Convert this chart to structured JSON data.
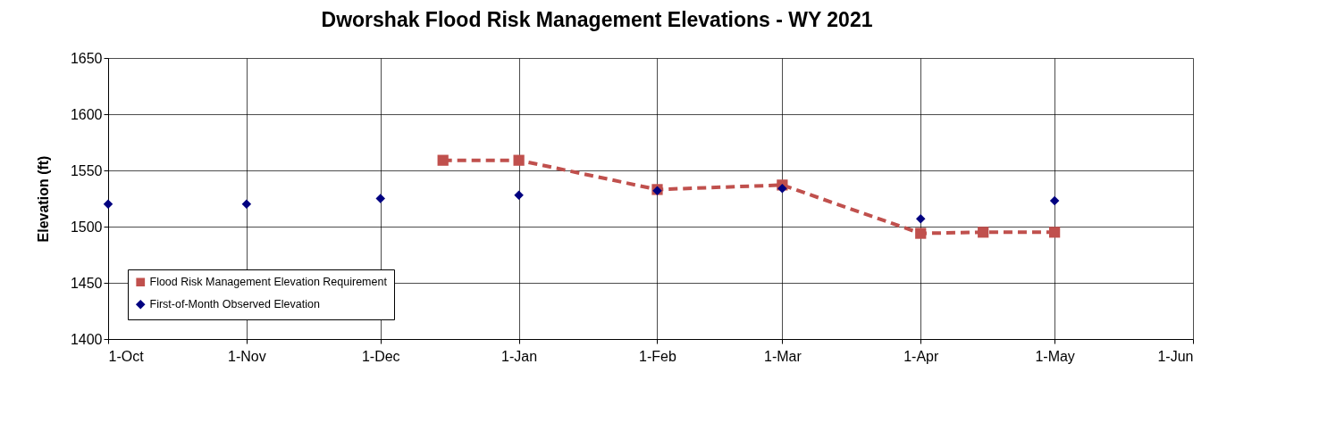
{
  "chart_data": {
    "type": "line",
    "title": "Dworshak Flood Risk Management  Elevations - WY 2021",
    "ylabel": "Elevation (ft)",
    "xlim": [
      "2020-10-01",
      "2021-06-01"
    ],
    "xticks": [
      {
        "value": "2020-10-01",
        "label": "1-Oct"
      },
      {
        "value": "2020-11-01",
        "label": "1-Nov"
      },
      {
        "value": "2020-12-01",
        "label": "1-Dec"
      },
      {
        "value": "2021-01-01",
        "label": "1-Jan"
      },
      {
        "value": "2021-02-01",
        "label": "1-Feb"
      },
      {
        "value": "2021-03-01",
        "label": "1-Mar"
      },
      {
        "value": "2021-04-01",
        "label": "1-Apr"
      },
      {
        "value": "2021-05-01",
        "label": "1-May"
      },
      {
        "value": "2021-06-01",
        "label": "1-Jun"
      }
    ],
    "ylim": [
      1400,
      1650
    ],
    "yticks": [
      1400,
      1450,
      1500,
      1550,
      1600,
      1650
    ],
    "grid": true,
    "legend": "bottom left",
    "series": [
      {
        "name": "Flood Risk Management Elevation Requirement",
        "color": "#c0504d",
        "marker": "square",
        "line_style": "dashed",
        "x": [
          "2020-12-15",
          "2021-01-01",
          "2021-02-01",
          "2021-03-01",
          "2021-04-01",
          "2021-04-15",
          "2021-05-01"
        ],
        "values": [
          1559,
          1559,
          1533,
          1537,
          1494,
          1495,
          1495
        ]
      },
      {
        "name": "First-of-Month Observed Elevation",
        "type": "scatter",
        "color": "#000080",
        "marker": "diamond",
        "x": [
          "2020-10-01",
          "2020-11-01",
          "2020-12-01",
          "2021-01-01",
          "2021-02-01",
          "2021-03-01",
          "2021-04-01",
          "2021-05-01"
        ],
        "values": [
          1520,
          1520,
          1525,
          1528,
          1532,
          1534,
          1507,
          1523
        ]
      }
    ]
  }
}
